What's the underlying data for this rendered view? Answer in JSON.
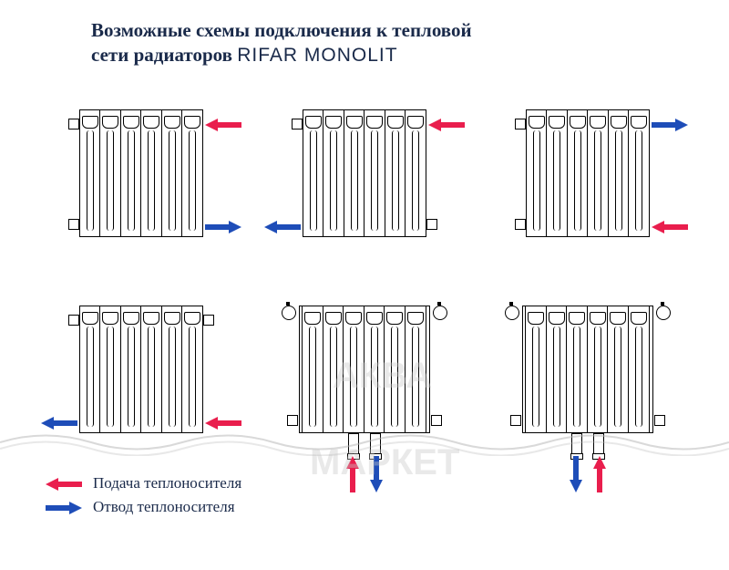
{
  "title_line1": "Возможные схемы подключения к тепловой",
  "title_line2": "сети радиаторов ",
  "brand": "RIFAR MONOLIT",
  "colors": {
    "supply": "#e91e4d",
    "return": "#1e4db8",
    "line": "#000000",
    "text": "#1a2a4a",
    "watermark": "rgba(200,200,200,0.4)"
  },
  "legend": {
    "supply": "Подача теплоносителя",
    "return": "Отвод теплоносителя"
  },
  "watermark": {
    "top": "АКВА",
    "bottom": "МАРКЕТ"
  },
  "radiator": {
    "sections": 6,
    "section_w": 24,
    "height": 140
  },
  "schemes": [
    {
      "arrows": [
        {
          "type": "supply",
          "side": "right",
          "y": "top",
          "dir": "left"
        },
        {
          "type": "return",
          "side": "right",
          "y": "bottom",
          "dir": "right"
        }
      ],
      "caps": false,
      "bottom_pipes": false
    },
    {
      "arrows": [
        {
          "type": "supply",
          "side": "right",
          "y": "top",
          "dir": "left"
        },
        {
          "type": "return",
          "side": "left",
          "y": "bottom",
          "dir": "left"
        }
      ],
      "caps": false,
      "bottom_pipes": false
    },
    {
      "arrows": [
        {
          "type": "return",
          "side": "right",
          "y": "top",
          "dir": "right"
        },
        {
          "type": "supply",
          "side": "right",
          "y": "bottom",
          "dir": "left"
        }
      ],
      "caps": false,
      "bottom_pipes": false
    },
    {
      "arrows": [
        {
          "type": "return",
          "side": "left",
          "y": "bottom",
          "dir": "left"
        },
        {
          "type": "supply",
          "side": "right",
          "y": "bottom",
          "dir": "left"
        }
      ],
      "caps": false,
      "bottom_pipes": false
    },
    {
      "arrows": [
        {
          "type": "supply",
          "side": "bottom",
          "x": "left-pipe",
          "dir": "up"
        },
        {
          "type": "return",
          "side": "bottom",
          "x": "right-pipe",
          "dir": "down"
        }
      ],
      "caps": true,
      "bottom_pipes": true,
      "valves": true
    },
    {
      "arrows": [
        {
          "type": "supply",
          "side": "bottom",
          "x": "right-pipe",
          "dir": "up"
        },
        {
          "type": "return",
          "side": "bottom",
          "x": "left-pipe",
          "dir": "down"
        }
      ],
      "caps": true,
      "bottom_pipes": true,
      "valves": true
    }
  ]
}
